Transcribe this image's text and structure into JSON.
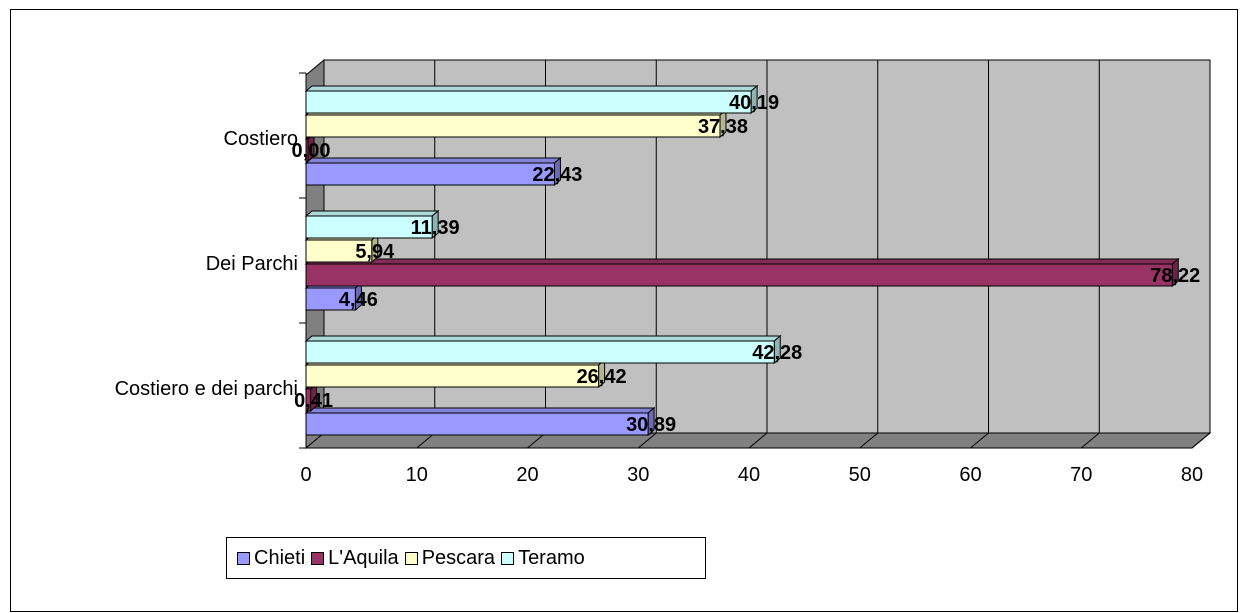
{
  "chart_data": {
    "type": "bar",
    "orientation": "horizontal",
    "categories": [
      "Costiero e dei parchi",
      "Dei Parchi",
      "Costiero"
    ],
    "series": [
      {
        "name": "Chieti",
        "color": "#9999FF",
        "values": [
          30.89,
          4.46,
          22.43
        ],
        "labels": [
          "30,89",
          "4,46",
          "22,43"
        ]
      },
      {
        "name": "L'Aquila",
        "color": "#993366",
        "values": [
          0.41,
          78.22,
          0.0
        ],
        "labels": [
          "0,41",
          "78,22",
          "0,00"
        ]
      },
      {
        "name": "Pescara",
        "color": "#FFFFCC",
        "values": [
          26.42,
          5.94,
          37.38
        ],
        "labels": [
          "26,42",
          "5,94",
          "37,38"
        ]
      },
      {
        "name": "Teramo",
        "color": "#CCFFFF",
        "values": [
          42.28,
          11.39,
          40.19
        ],
        "labels": [
          "42,28",
          "11,39",
          "40,19"
        ]
      }
    ],
    "xlim": [
      0,
      80
    ],
    "xticks": [
      "0",
      "10",
      "20",
      "30",
      "40",
      "50",
      "60",
      "70",
      "80"
    ],
    "grid": true,
    "wall_color": "#C0C0C0",
    "legend": "bottom-left"
  }
}
